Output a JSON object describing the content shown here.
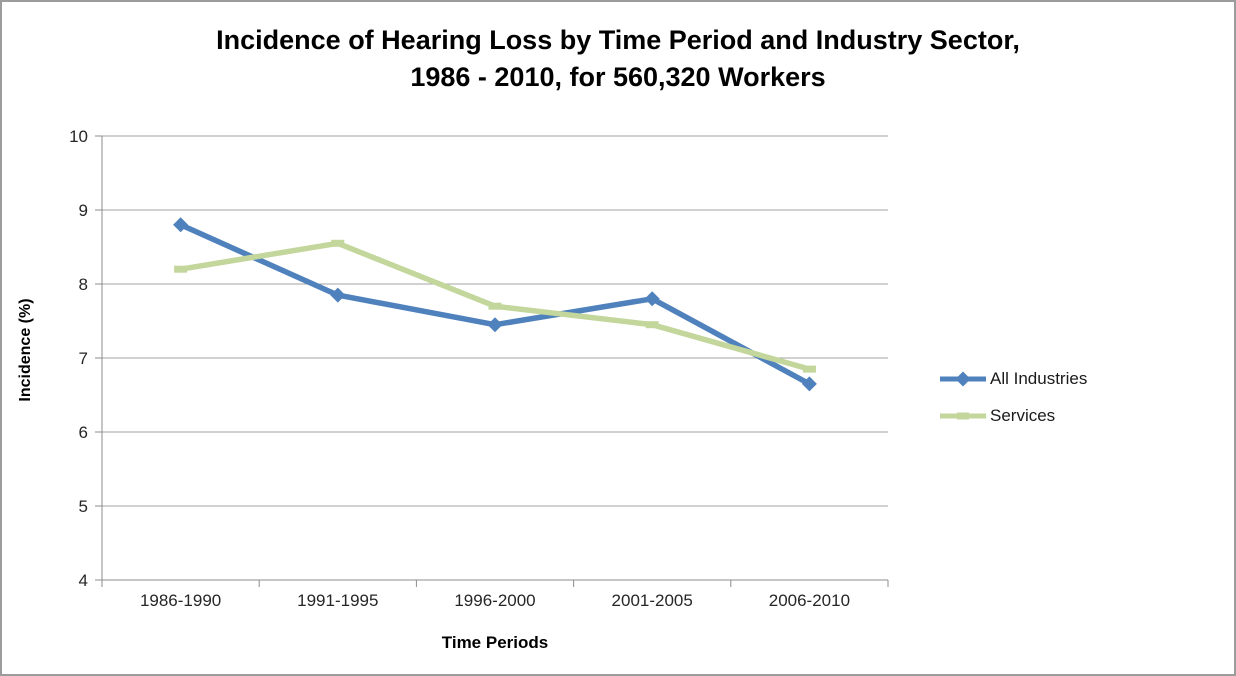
{
  "chart_data": {
    "type": "line",
    "title": "Incidence of Hearing Loss by Time Period and Industry Sector, 1986 - 2010, for 560,320 Workers",
    "title_lines": [
      "Incidence of Hearing Loss by Time Period and Industry Sector,",
      "1986 - 2010, for 560,320 Workers"
    ],
    "xlabel": "Time Periods",
    "ylabel": "Incidence (%)",
    "categories": [
      "1986-1990",
      "1991-1995",
      "1996-2000",
      "2001-2005",
      "2006-2010"
    ],
    "series": [
      {
        "name": "All Industries",
        "values": [
          8.8,
          7.85,
          7.45,
          7.8,
          6.65
        ],
        "color": "#4F81BD",
        "marker": "diamond"
      },
      {
        "name": "Services",
        "values": [
          8.2,
          8.55,
          7.7,
          7.45,
          6.85
        ],
        "color": "#C3D69B",
        "marker": "dash"
      }
    ],
    "ylim": [
      4,
      10
    ],
    "ytick_step": 1,
    "grid": "horizontal",
    "legend_position": "right"
  },
  "colors": {
    "axis": "#8C8C8C",
    "grid": "#A3A3A3",
    "tick_text": "#262626",
    "border": "#9C9C9C"
  }
}
